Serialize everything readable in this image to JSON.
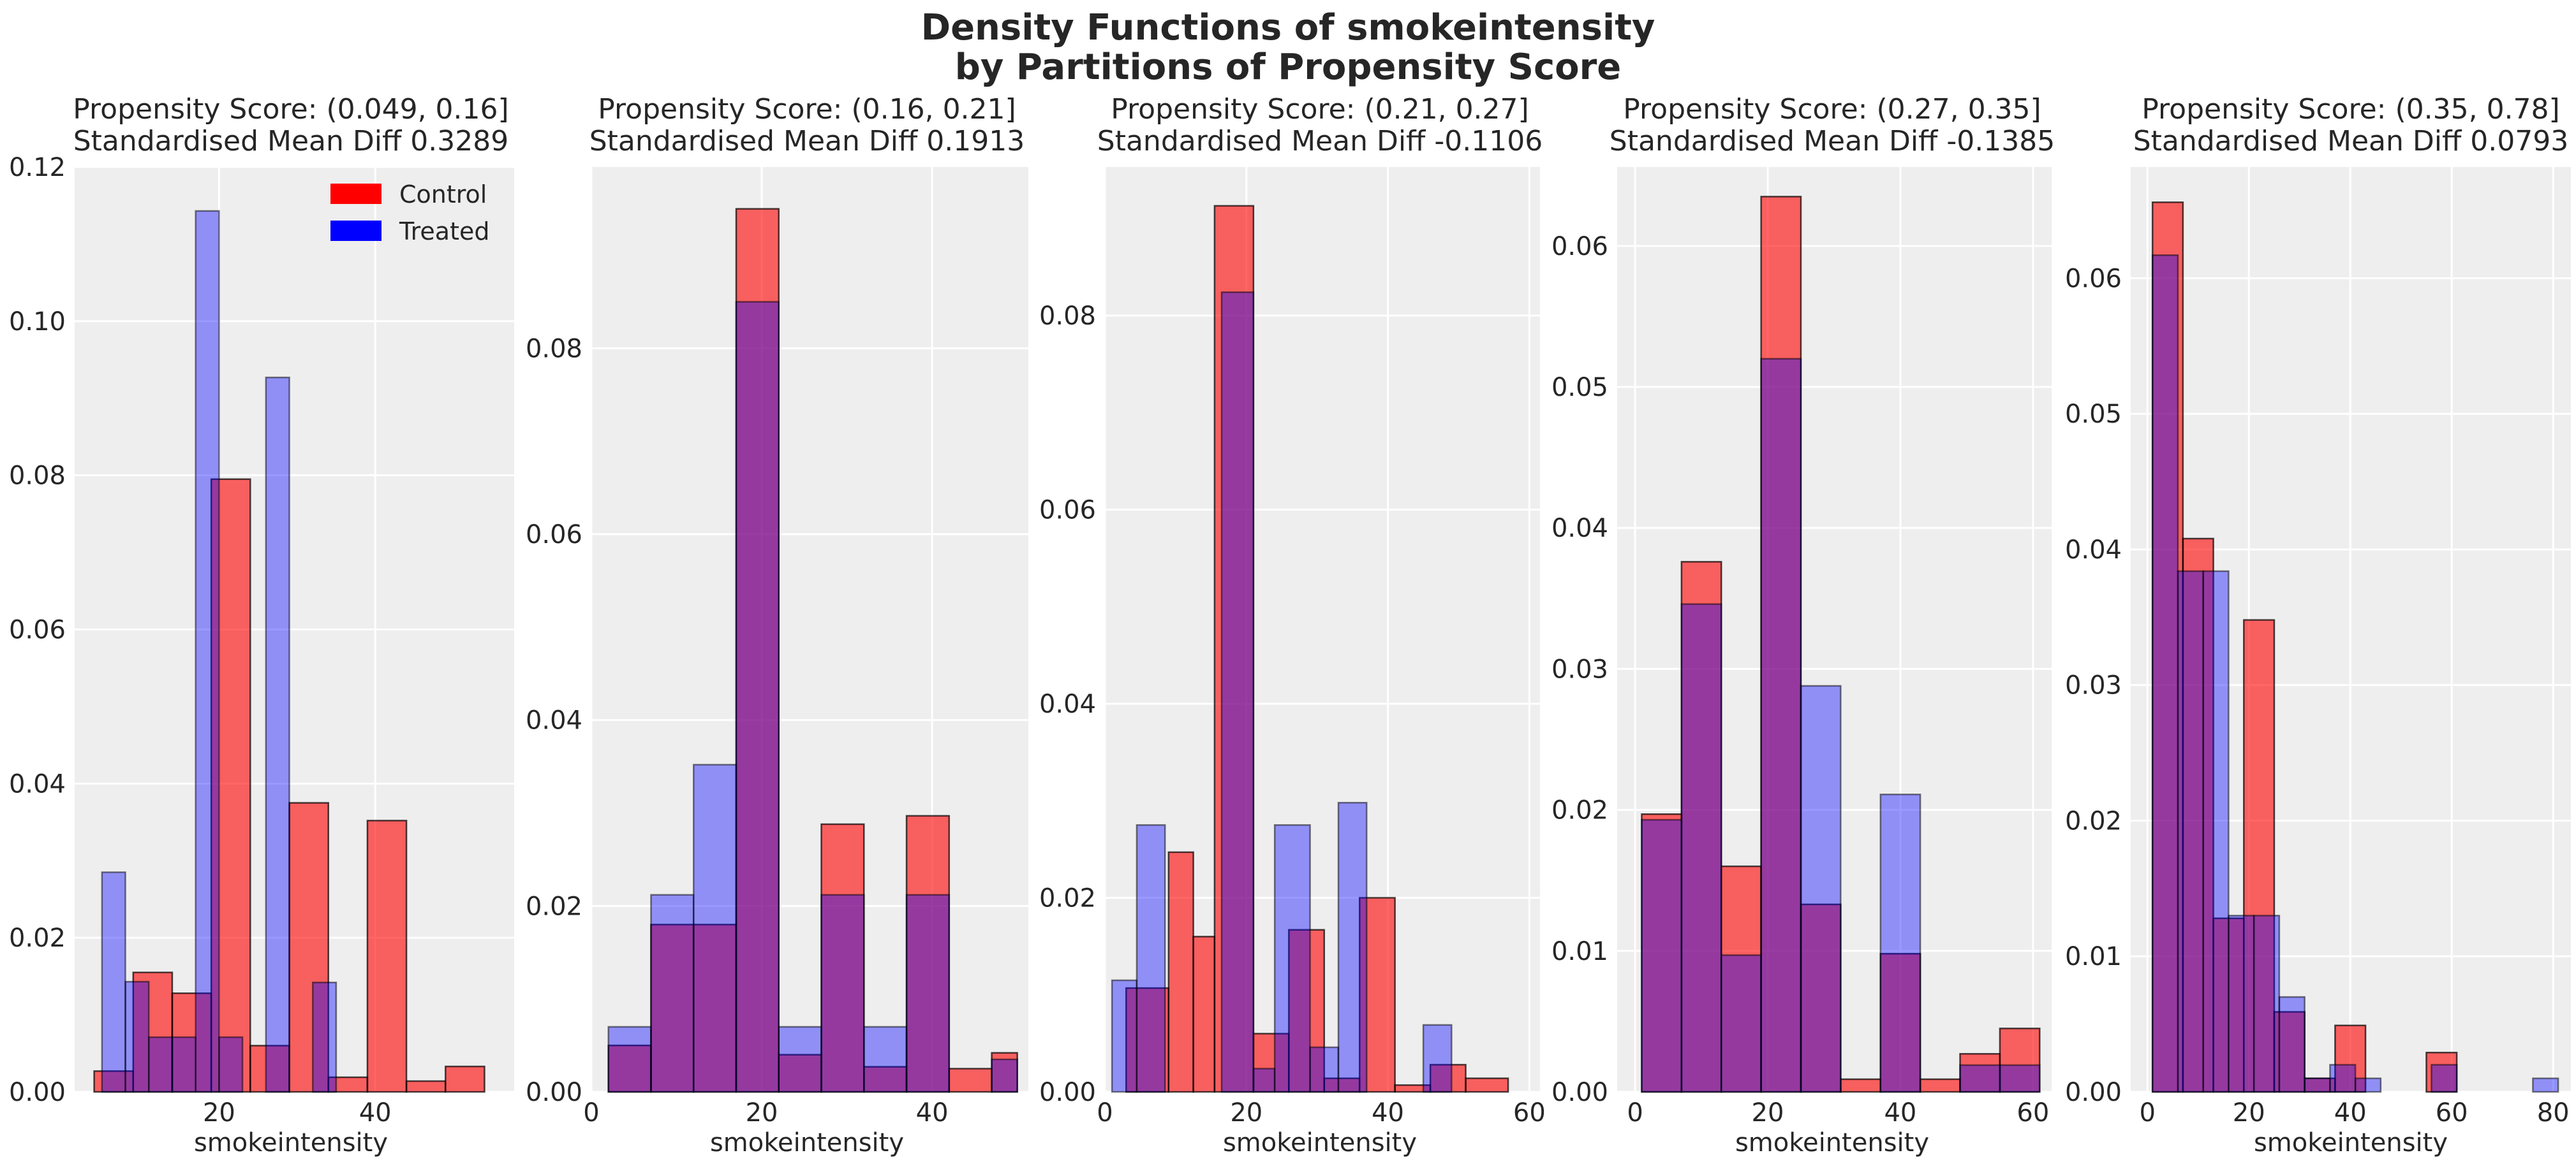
{
  "figure": {
    "title_line1": "Density Functions of smokeintensity",
    "title_line2": "by Partitions of Propensity Score"
  },
  "colors": {
    "control": "#ff0000",
    "treated": "#0000ff",
    "overlap": "#8e3593",
    "bg": "#eeeeee",
    "grid": "#ffffff"
  },
  "chart_data": [
    {
      "type": "bar",
      "title_line1": "Propensity Score: (0.049, 0.16]",
      "title_line2": "Standardised Mean Diff 0.3289",
      "xlabel": "smokeintensity",
      "xlim": [
        1.5,
        57.8
      ],
      "ylim": [
        0,
        0.12
      ],
      "xticks": [
        20,
        40
      ],
      "yticks": [
        0.0,
        0.02,
        0.04,
        0.06,
        0.08,
        0.1,
        0.12
      ],
      "ytick_decimals": 2,
      "legend": {
        "position": "top-right",
        "labels": [
          "Control",
          "Treated"
        ]
      },
      "series": [
        {
          "name": "Control",
          "bins": [
            [
              4,
              9,
              0.0027
            ],
            [
              9,
              14,
              0.0155
            ],
            [
              14,
              19,
              0.0128
            ],
            [
              19,
              24,
              0.0795
            ],
            [
              24,
              29,
              0.006
            ],
            [
              29,
              34,
              0.0375
            ],
            [
              34,
              39,
              0.0019
            ],
            [
              39,
              44,
              0.0352
            ],
            [
              44,
              49,
              0.0014
            ],
            [
              49,
              54,
              0.0033
            ]
          ]
        },
        {
          "name": "Treated",
          "bins": [
            [
              5,
              8,
              0.0285
            ],
            [
              8,
              11,
              0.0143
            ],
            [
              11,
              14,
              0.0071
            ],
            [
              14,
              17,
              0.0071
            ],
            [
              17,
              20,
              0.1143
            ],
            [
              20,
              23,
              0.0071
            ],
            [
              23,
              26,
              0.0
            ],
            [
              26,
              29,
              0.0927
            ],
            [
              29,
              32,
              0.0
            ],
            [
              32,
              35,
              0.0142
            ]
          ]
        }
      ]
    },
    {
      "type": "bar",
      "title_line1": "Propensity Score: (0.16, 0.21]",
      "title_line2": "Standardised Mean Diff 0.1913",
      "xlabel": "smokeintensity",
      "xlim": [
        0,
        51.3
      ],
      "ylim": [
        0,
        0.0995
      ],
      "xticks": [
        0,
        20,
        40
      ],
      "yticks": [
        0.0,
        0.02,
        0.04,
        0.06,
        0.08
      ],
      "ytick_decimals": 2,
      "series": [
        {
          "name": "Control",
          "bins": [
            [
              2,
              7,
              0.005
            ],
            [
              7,
              12,
              0.018
            ],
            [
              12,
              17,
              0.018
            ],
            [
              17,
              22,
              0.095
            ],
            [
              22,
              27,
              0.004
            ],
            [
              27,
              32,
              0.0288
            ],
            [
              32,
              37,
              0.0027
            ],
            [
              37,
              42,
              0.0297
            ],
            [
              42,
              47,
              0.0025
            ],
            [
              47,
              50,
              0.0042
            ]
          ]
        },
        {
          "name": "Treated",
          "bins": [
            [
              2,
              7,
              0.007
            ],
            [
              7,
              12,
              0.0212
            ],
            [
              12,
              17,
              0.0352
            ],
            [
              17,
              22,
              0.085
            ],
            [
              22,
              27,
              0.007
            ],
            [
              27,
              32,
              0.0212
            ],
            [
              32,
              37,
              0.007
            ],
            [
              37,
              42,
              0.0212
            ],
            [
              42,
              47,
              0.0
            ],
            [
              47,
              50,
              0.0035
            ]
          ]
        }
      ]
    },
    {
      "type": "bar",
      "title_line1": "Propensity Score: (0.21, 0.27]",
      "title_line2": "Standardised Mean Diff -0.1106",
      "xlabel": "smokeintensity",
      "xlim": [
        0,
        61.5
      ],
      "ylim": [
        0,
        0.0953
      ],
      "xticks": [
        0,
        20,
        40,
        60
      ],
      "yticks": [
        0.0,
        0.02,
        0.04,
        0.06,
        0.08
      ],
      "ytick_decimals": 2,
      "series": [
        {
          "name": "Control",
          "bins": [
            [
              3,
              9,
              0.0107
            ],
            [
              9,
              12.5,
              0.0247
            ],
            [
              12.5,
              15.5,
              0.016
            ],
            [
              15.5,
              21,
              0.0913
            ],
            [
              21,
              26,
              0.006
            ],
            [
              26,
              31,
              0.0167
            ],
            [
              31,
              36,
              0.0014
            ],
            [
              36,
              41,
              0.02
            ],
            [
              41,
              46,
              0.0007
            ],
            [
              46,
              51,
              0.0028
            ],
            [
              51,
              57,
              0.0014
            ]
          ]
        },
        {
          "name": "Treated",
          "bins": [
            [
              1,
              4.5,
              0.0115
            ],
            [
              4.5,
              8.5,
              0.0275
            ],
            [
              8.5,
              12.5,
              0.0
            ],
            [
              12.5,
              16.5,
              0.0
            ],
            [
              16.5,
              21,
              0.0824
            ],
            [
              21,
              24,
              0.0024
            ],
            [
              24,
              29,
              0.0275
            ],
            [
              29,
              33,
              0.0046
            ],
            [
              33,
              37,
              0.0298
            ],
            [
              37,
              41,
              0.0
            ],
            [
              41,
              45,
              0.0
            ],
            [
              45,
              49,
              0.0069
            ]
          ]
        }
      ]
    },
    {
      "type": "bar",
      "title_line1": "Propensity Score: (0.27, 0.35]",
      "title_line2": "Standardised Mean Diff -0.1385",
      "xlabel": "smokeintensity",
      "xlim": [
        -2.7,
        62.8
      ],
      "ylim": [
        0,
        0.0656
      ],
      "xticks": [
        0,
        20,
        40,
        60
      ],
      "yticks": [
        0.0,
        0.01,
        0.02,
        0.03,
        0.04,
        0.05,
        0.06
      ],
      "ytick_decimals": 2,
      "series": [
        {
          "name": "Control",
          "bins": [
            [
              1,
              7,
              0.0197
            ],
            [
              7,
              13,
              0.0376
            ],
            [
              13,
              19,
              0.016
            ],
            [
              19,
              25,
              0.0635
            ],
            [
              25,
              31,
              0.0133
            ],
            [
              31,
              37,
              0.0009
            ],
            [
              37,
              43,
              0.0098
            ],
            [
              43,
              49,
              0.0009
            ],
            [
              49,
              55,
              0.0027
            ],
            [
              55,
              61,
              0.0045
            ]
          ]
        },
        {
          "name": "Treated",
          "bins": [
            [
              1,
              7,
              0.0193
            ],
            [
              7,
              13,
              0.0346
            ],
            [
              13,
              19,
              0.0097
            ],
            [
              19,
              25,
              0.052
            ],
            [
              25,
              31,
              0.0288
            ],
            [
              31,
              37,
              0.0
            ],
            [
              37,
              43,
              0.0211
            ],
            [
              43,
              49,
              0.0
            ],
            [
              49,
              55,
              0.0019
            ],
            [
              55,
              61,
              0.0019
            ]
          ]
        }
      ]
    },
    {
      "type": "bar",
      "title_line1": "Propensity Score: (0.35, 0.78]",
      "title_line2": "Standardised Mean Diff 0.0793",
      "xlabel": "smokeintensity",
      "xlim": [
        -3.3,
        83.5
      ],
      "ylim": [
        0,
        0.0682
      ],
      "xticks": [
        0,
        20,
        40,
        60,
        80
      ],
      "yticks": [
        0.0,
        0.01,
        0.02,
        0.03,
        0.04,
        0.05,
        0.06
      ],
      "ytick_decimals": 2,
      "series": [
        {
          "name": "Control",
          "bins": [
            [
              1,
              7,
              0.0656
            ],
            [
              7,
              13,
              0.0408
            ],
            [
              13,
              19,
              0.0128
            ],
            [
              19,
              25,
              0.0348
            ],
            [
              25,
              31,
              0.0059
            ],
            [
              31,
              37,
              0.001
            ],
            [
              37,
              43,
              0.0049
            ],
            [
              43,
              49,
              0.0
            ],
            [
              49,
              55,
              0.0
            ],
            [
              55,
              61,
              0.0029
            ]
          ]
        },
        {
          "name": "Treated",
          "bins": [
            [
              1,
              6,
              0.0617
            ],
            [
              6,
              11,
              0.0384
            ],
            [
              11,
              16,
              0.0384
            ],
            [
              16,
              21,
              0.013
            ],
            [
              21,
              26,
              0.013
            ],
            [
              26,
              31,
              0.007
            ],
            [
              31,
              36,
              0.001
            ],
            [
              36,
              41,
              0.002
            ],
            [
              41,
              46,
              0.001
            ],
            [
              46,
              51,
              0.0
            ],
            [
              51,
              56,
              0.0
            ],
            [
              56,
              61,
              0.002
            ],
            [
              61,
              66,
              0.0
            ],
            [
              66,
              71,
              0.0
            ],
            [
              71,
              76,
              0.0
            ],
            [
              76,
              81,
              0.001
            ]
          ]
        }
      ]
    }
  ]
}
